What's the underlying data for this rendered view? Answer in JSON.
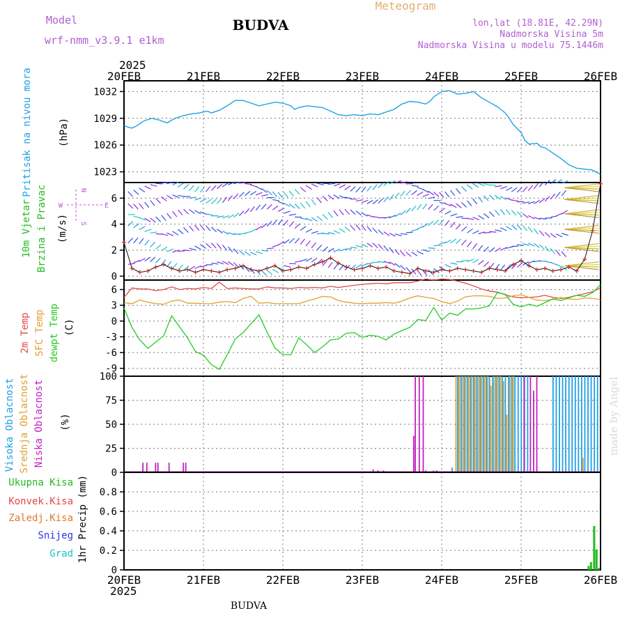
{
  "header": {
    "model_label": "Model",
    "model_name": "wrf-nmm_v3.9.1  e1km",
    "station": "BUDVA",
    "meteogram": "Meteogram",
    "lonlat": "lon,lat (18.81E, 42.29N)",
    "altitude": "Nadmorska Visina 5m",
    "model_altitude": "Nadmorska Visina u modelu 75.1446m",
    "footer_station": "BUDVA",
    "watermark": "made by Angel"
  },
  "time_axis": {
    "year": "2025",
    "labels": [
      "20FEB",
      "21FEB",
      "22FEB",
      "23FEB",
      "24FEB",
      "25FEB",
      "26FEB"
    ]
  },
  "colors": {
    "pressure": "#1ea0e6",
    "temp2m": "#e04848",
    "sfc_temp": "#e0a030",
    "dewpoint": "#22cc22",
    "high_cloud": "#1ea0e6",
    "mid_cloud": "#e0a030",
    "low_cloud": "#c020c0",
    "precip": "#22bb22",
    "wind_speed": "#cc2222",
    "wind_purple": "#8a2be2"
  },
  "panels": {
    "pressure": {
      "ylabel_name": "Pritisak na nivou mora",
      "ylabel_unit": "(hPa)"
    },
    "wind": {
      "ylabel_name": "10m Vjetar",
      "ylabel_name2": "Brzina i Pravac",
      "ylabel_unit": "(m/s)",
      "compass_n": "N",
      "compass_s": "S",
      "compass_e": "E",
      "compass_w": "W"
    },
    "temperature": {
      "ylabel_t2m": "2m Temp",
      "ylabel_sfc": "SFC Temp",
      "ylabel_dew": "dewpt Temp",
      "ylabel_unit": "(C)"
    },
    "cloud": {
      "ylabel_high": "Visoka Oblacnost",
      "ylabel_mid": "Srednja Oblacnost",
      "ylabel_low": "Niska Oblacnost",
      "ylabel_unit": "(%)"
    },
    "precip": {
      "legend": [
        "Ukupna Kisa",
        "Konvek.Kisa",
        "Zaledj.Kisa",
        "Snijeg",
        "Grad"
      ],
      "legend_colors": [
        "#22bb22",
        "#e04848",
        "#e07830",
        "#3030e0",
        "#20c0c0"
      ],
      "ylabel": "1hr Precip (mm)"
    }
  },
  "chart_data": [
    {
      "type": "line",
      "name": "pressure",
      "x_days": [
        0,
        0.05,
        0.1,
        0.15,
        0.2,
        0.25,
        0.35,
        0.45,
        0.5,
        0.55,
        0.6,
        0.65,
        0.75,
        0.85,
        0.95,
        1.05,
        1.1,
        1.2,
        1.3,
        1.4,
        1.5,
        1.6,
        1.7,
        1.8,
        1.9,
        2.0,
        2.1,
        2.15,
        2.2,
        2.3,
        2.4,
        2.5,
        2.6,
        2.7,
        2.8,
        2.9,
        3.0,
        3.1,
        3.2,
        3.3,
        3.4,
        3.5,
        3.6,
        3.7,
        3.8,
        3.85,
        3.9,
        4.0,
        4.1,
        4.2,
        4.3,
        4.4,
        4.5,
        4.6,
        4.7,
        4.8,
        4.85,
        4.9,
        5.0,
        5.05,
        5.1,
        5.2,
        5.25,
        5.3,
        5.4,
        5.5,
        5.6,
        5.7,
        5.8,
        5.9,
        6.0
      ],
      "y": [
        1028.2,
        1028.0,
        1027.9,
        1028.1,
        1028.4,
        1028.7,
        1029.0,
        1028.8,
        1028.6,
        1028.5,
        1028.8,
        1029.0,
        1029.3,
        1029.5,
        1029.6,
        1029.8,
        1029.6,
        1029.9,
        1030.4,
        1031.0,
        1031.0,
        1030.7,
        1030.4,
        1030.6,
        1030.8,
        1030.7,
        1030.4,
        1030.0,
        1030.2,
        1030.4,
        1030.3,
        1030.2,
        1029.8,
        1029.4,
        1029.3,
        1029.4,
        1029.3,
        1029.5,
        1029.4,
        1029.7,
        1030.0,
        1030.6,
        1030.9,
        1030.8,
        1030.6,
        1030.9,
        1031.4,
        1032.0,
        1032.1,
        1031.7,
        1031.8,
        1032.0,
        1031.3,
        1030.8,
        1030.3,
        1029.6,
        1029.0,
        1028.3,
        1027.4,
        1026.5,
        1026.1,
        1026.2,
        1025.8,
        1025.7,
        1025.1,
        1024.5,
        1023.8,
        1023.4,
        1023.3,
        1023.2,
        1022.7
      ],
      "ylim": [
        1021.8,
        1033.2
      ],
      "yticks": [
        1023,
        1026,
        1029,
        1032
      ]
    },
    {
      "type": "line",
      "name": "wind_speed",
      "x_days": [
        0,
        0.1,
        0.2,
        0.3,
        0.4,
        0.5,
        0.6,
        0.7,
        0.8,
        0.9,
        1.0,
        1.1,
        1.2,
        1.3,
        1.4,
        1.5,
        1.6,
        1.7,
        1.8,
        1.9,
        2.0,
        2.1,
        2.2,
        2.3,
        2.4,
        2.5,
        2.6,
        2.7,
        2.8,
        2.9,
        3.0,
        3.1,
        3.2,
        3.3,
        3.4,
        3.5,
        3.6,
        3.7,
        3.8,
        3.9,
        4.0,
        4.1,
        4.2,
        4.3,
        4.4,
        4.5,
        4.6,
        4.7,
        4.8,
        4.9,
        5.0,
        5.1,
        5.2,
        5.3,
        5.4,
        5.5,
        5.6,
        5.7,
        5.8,
        5.9,
        6.0
      ],
      "y": [
        2.6,
        0.6,
        0.3,
        0.4,
        0.7,
        0.9,
        0.6,
        0.4,
        0.5,
        0.3,
        0.5,
        0.4,
        0.3,
        0.5,
        0.6,
        0.8,
        0.5,
        0.4,
        0.6,
        0.8,
        0.4,
        0.5,
        0.7,
        0.6,
        0.9,
        1.1,
        1.4,
        1.0,
        0.7,
        0.5,
        0.6,
        0.8,
        0.6,
        0.7,
        0.4,
        0.3,
        0.2,
        0.6,
        0.4,
        0.3,
        0.5,
        0.4,
        0.6,
        0.5,
        0.4,
        0.3,
        0.6,
        0.5,
        0.4,
        0.9,
        1.2,
        0.8,
        0.5,
        0.6,
        0.4,
        0.5,
        0.7,
        0.4,
        1.3,
        3.5,
        7.1
      ],
      "ylim": [
        -0.3,
        7.2
      ],
      "yticks": [
        0,
        2,
        4,
        6
      ]
    },
    {
      "type": "line",
      "name": "temperature",
      "x_days": [
        0,
        0.1,
        0.2,
        0.3,
        0.4,
        0.5,
        0.6,
        0.7,
        0.8,
        0.9,
        1.0,
        1.1,
        1.2,
        1.3,
        1.4,
        1.5,
        1.6,
        1.7,
        1.8,
        1.9,
        2.0,
        2.1,
        2.2,
        2.3,
        2.4,
        2.5,
        2.6,
        2.7,
        2.8,
        2.9,
        3.0,
        3.1,
        3.2,
        3.3,
        3.4,
        3.5,
        3.6,
        3.7,
        3.8,
        3.9,
        4.0,
        4.1,
        4.2,
        4.3,
        4.4,
        4.5,
        4.6,
        4.7,
        4.8,
        4.9,
        5.0,
        5.1,
        5.2,
        5.3,
        5.4,
        5.5,
        5.6,
        5.7,
        5.8,
        5.9,
        6.0
      ],
      "series": [
        {
          "name": "2m Temp",
          "key": "temp2m",
          "y": [
            4.5,
            6.3,
            6.1,
            6.1,
            5.8,
            6.0,
            6.5,
            6.0,
            6.2,
            6.1,
            6.4,
            6.2,
            7.4,
            6.2,
            6.3,
            6.2,
            6.1,
            6.1,
            6.5,
            6.3,
            6.3,
            6.2,
            6.4,
            6.3,
            6.4,
            6.3,
            6.6,
            6.4,
            6.6,
            6.8,
            7.0,
            7.1,
            7.2,
            7.1,
            7.3,
            7.3,
            7.3,
            7.6,
            8.0,
            7.8,
            8.0,
            7.9,
            7.6,
            7.2,
            6.7,
            6.1,
            5.7,
            5.5,
            5.0,
            4.6,
            4.4,
            4.5,
            4.6,
            4.9,
            4.5,
            4.3,
            4.5,
            4.9,
            5.2,
            5.6,
            6.3
          ]
        },
        {
          "name": "SFC Temp",
          "key": "sfc_temp",
          "y": [
            3.5,
            3.3,
            4.0,
            3.6,
            3.3,
            3.2,
            3.8,
            4.0,
            3.4,
            3.4,
            3.3,
            3.3,
            3.6,
            3.7,
            3.5,
            4.3,
            4.7,
            3.4,
            3.5,
            3.3,
            3.3,
            3.3,
            3.3,
            3.8,
            4.2,
            4.7,
            4.6,
            3.9,
            3.6,
            3.4,
            3.3,
            3.4,
            3.4,
            3.5,
            3.4,
            3.8,
            4.4,
            4.8,
            4.5,
            4.3,
            3.7,
            3.3,
            3.8,
            4.6,
            4.8,
            4.8,
            4.7,
            4.3,
            4.4,
            4.8,
            5.0,
            4.5,
            4.0,
            3.9,
            4.1,
            4.5,
            4.2,
            4.1,
            4.4,
            4.3,
            4.1
          ]
        },
        {
          "name": "dewpt Temp",
          "key": "dewpoint",
          "y": [
            2.5,
            -1.2,
            -3.6,
            -5.2,
            -4.0,
            -2.8,
            1.0,
            -1.1,
            -3.2,
            -5.8,
            -6.5,
            -8.3,
            -9.2,
            -6.4,
            -3.4,
            -2.2,
            -0.5,
            1.2,
            -2.1,
            -5.1,
            -6.4,
            -6.4,
            -3.2,
            -4.5,
            -6.0,
            -4.9,
            -3.6,
            -3.4,
            -2.3,
            -2.2,
            -3.1,
            -2.7,
            -2.9,
            -3.6,
            -2.5,
            -1.8,
            -1.2,
            0.3,
            0.1,
            2.6,
            0.2,
            1.5,
            1.1,
            2.3,
            2.3,
            2.5,
            2.9,
            5.4,
            5.1,
            3.2,
            2.7,
            3.2,
            2.8,
            3.5,
            4.2,
            3.9,
            4.4,
            4.9,
            4.7,
            5.4,
            6.9
          ]
        }
      ],
      "ylim": [
        -10.5,
        7.8
      ],
      "yticks": [
        -9,
        -6,
        -3,
        0,
        3,
        6
      ]
    },
    {
      "type": "bar",
      "name": "cloud_cover",
      "x_days": [
        0.22,
        0.27,
        0.38,
        0.41,
        0.55,
        0.73,
        0.76,
        3.12,
        3.18,
        3.25,
        3.63,
        3.65,
        3.7,
        3.75,
        3.78,
        3.88,
        3.92,
        4.15,
        4.18,
        4.22,
        4.26,
        4.3,
        4.34,
        4.38,
        4.42,
        4.46,
        4.5,
        4.54,
        4.58,
        4.62,
        4.66,
        4.7,
        4.74,
        4.78,
        4.82,
        4.86,
        4.9,
        4.94,
        4.98,
        5.02,
        5.06,
        5.1,
        5.14,
        5.18,
        5.22,
        5.42,
        5.46,
        5.5,
        5.54,
        5.58,
        5.62,
        5.66,
        5.7,
        5.74,
        5.78,
        5.82,
        5.86,
        5.9,
        5.94,
        5.98
      ],
      "series": [
        {
          "name": "Visoka Oblacnost",
          "key": "high_cloud",
          "values": [
            0,
            0,
            0,
            0,
            0,
            0,
            0,
            0,
            0,
            0,
            0,
            0,
            0,
            0,
            0,
            0,
            0,
            5,
            0,
            100,
            100,
            100,
            100,
            100,
            100,
            100,
            100,
            100,
            100,
            100,
            100,
            100,
            100,
            100,
            100,
            100,
            100,
            100,
            100,
            100,
            100,
            100,
            0,
            0,
            0,
            100,
            100,
            100,
            100,
            100,
            100,
            100,
            100,
            100,
            100,
            100,
            100,
            100,
            100,
            100
          ]
        },
        {
          "name": "Srednja Oblacnost",
          "key": "mid_cloud",
          "values": [
            0,
            0,
            0,
            0,
            0,
            0,
            0,
            0,
            0,
            0,
            0,
            0,
            0,
            0,
            0,
            0,
            0,
            0,
            100,
            100,
            100,
            100,
            100,
            100,
            100,
            100,
            100,
            100,
            100,
            90,
            100,
            100,
            100,
            95,
            60,
            100,
            100,
            0,
            0,
            0,
            0,
            0,
            0,
            0,
            0,
            0,
            0,
            0,
            0,
            0,
            0,
            0,
            0,
            0,
            15,
            0,
            0,
            0,
            0,
            0
          ]
        },
        {
          "name": "Niska Oblacnost",
          "key": "low_cloud",
          "values": [
            10,
            10,
            10,
            10,
            10,
            10,
            10,
            3,
            2,
            2,
            38,
            100,
            100,
            100,
            2,
            2,
            2,
            0,
            0,
            0,
            0,
            0,
            0,
            0,
            0,
            0,
            0,
            0,
            0,
            0,
            0,
            0,
            0,
            0,
            0,
            0,
            0,
            0,
            0,
            100,
            0,
            100,
            85,
            100,
            0,
            0,
            0,
            0,
            0,
            0,
            0,
            0,
            0,
            0,
            0,
            0,
            0,
            0,
            0,
            0
          ]
        }
      ],
      "ylim": [
        0,
        100
      ],
      "yticks": [
        0,
        25,
        50,
        75,
        100
      ]
    },
    {
      "type": "bar",
      "name": "precipitation",
      "x_days": [
        5.85,
        5.88,
        5.92,
        5.95,
        5.98
      ],
      "values": [
        0.04,
        0.08,
        0.45,
        0.21,
        0.02
      ],
      "ylim": [
        0,
        1.0
      ],
      "yticks": [
        0,
        0.2,
        0.4,
        0.6,
        0.8
      ]
    }
  ]
}
